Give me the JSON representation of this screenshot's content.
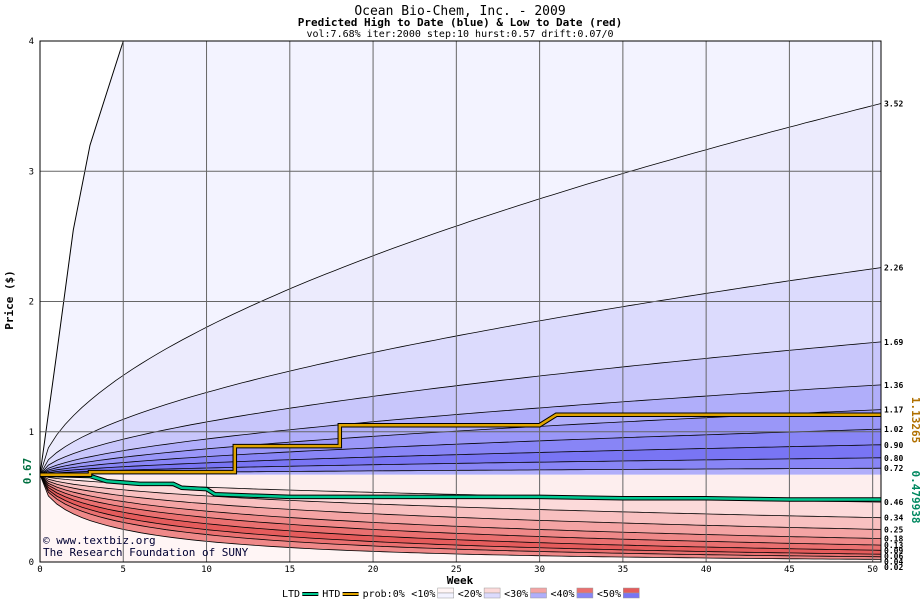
{
  "chart_data": {
    "type": "area",
    "title": "Ocean Bio-Chem, Inc. - 2009",
    "subtitle": "Predicted High to Date (blue) &  Low to Date (red)",
    "params": "vol:7.68% iter:2000 step:10 hurst:0.57 drift:0.07/0",
    "xlabel": "Week",
    "ylabel": "Price ($)",
    "xlim": [
      0,
      50.5
    ],
    "ylim": [
      0,
      4
    ],
    "x_ticks": [
      "0",
      "5",
      "10",
      "15",
      "20",
      "25",
      "30",
      "35",
      "40",
      "45",
      "50"
    ],
    "y_ticks": [
      "0",
      "1",
      "2",
      "3",
      "4"
    ],
    "start_price": "0.67",
    "start_value": 0.67,
    "right_labels_high": [
      "3.52",
      "2.26",
      "1.69",
      "1.36",
      "1.17",
      "1.02",
      "0.90",
      "0.80",
      "0.72"
    ],
    "high_end_values": [
      3.52,
      2.26,
      1.69,
      1.36,
      1.17,
      1.02,
      0.9,
      0.8,
      0.72
    ],
    "right_labels_low": [
      "0.46",
      "0.34",
      "0.25",
      "0.18",
      "0.13",
      "0.09",
      "0.06",
      "0.04",
      "0.02"
    ],
    "low_end_values": [
      0.46,
      0.34,
      0.25,
      0.18,
      0.13,
      0.09,
      0.06,
      0.04,
      0.02
    ],
    "extreme_high_curve": {
      "x": [
        0,
        1,
        2,
        3,
        4,
        5
      ],
      "y": [
        0.67,
        1.6,
        2.55,
        3.2,
        3.6,
        4.0
      ]
    },
    "htd_line": {
      "x": [
        0,
        3,
        3,
        11.7,
        11.7,
        18,
        18,
        30,
        31,
        31,
        50.5
      ],
      "y": [
        0.67,
        0.67,
        0.69,
        0.69,
        0.89,
        0.89,
        1.05,
        1.05,
        1.13,
        1.13,
        1.13
      ]
    },
    "ltd_line": {
      "x": [
        0,
        3,
        4,
        5,
        6,
        8,
        8.5,
        10,
        10.5,
        15,
        20,
        25,
        30,
        35,
        40,
        45,
        50.5
      ],
      "y": [
        0.67,
        0.66,
        0.62,
        0.61,
        0.6,
        0.6,
        0.57,
        0.56,
        0.52,
        0.5,
        0.5,
        0.5,
        0.5,
        0.49,
        0.49,
        0.48,
        0.48
      ]
    },
    "current_htd": "1.13265",
    "current_ltd": "0.479938",
    "colors": {
      "high_shades": [
        "#ecebfd",
        "#dcdbfd",
        "#c8c6fb",
        "#b0aefa",
        "#9a97f8",
        "#8885f6",
        "#7975f4"
      ],
      "low_shades": [
        "#fdeeee",
        "#fcdada",
        "#f8c0c0",
        "#f4a4a4",
        "#ef8989",
        "#ea7070",
        "#e55c5c"
      ],
      "outer_high": "#f3f3ff",
      "outer_low": "#fff5f5",
      "htd": "#e0a400",
      "ltd": "#00c890",
      "grid": "#666666",
      "htd_value_color": "#b07000",
      "ltd_value_color": "#008860"
    },
    "legend": [
      {
        "label": "LTD",
        "swatch": "ltd-line"
      },
      {
        "label": "HTD",
        "swatch": "htd-line"
      },
      {
        "label": "prob:0%",
        "swatch": "none"
      },
      {
        "label": "<10%",
        "swatch": "band"
      },
      {
        "label": "<20%",
        "swatch": "band"
      },
      {
        "label": "<30%",
        "swatch": "band"
      },
      {
        "label": "<40%",
        "swatch": "band"
      },
      {
        "label": "<50%",
        "swatch": "band"
      }
    ],
    "credit": [
      "© www.textbiz.org",
      "The Research Foundation of SUNY"
    ]
  }
}
